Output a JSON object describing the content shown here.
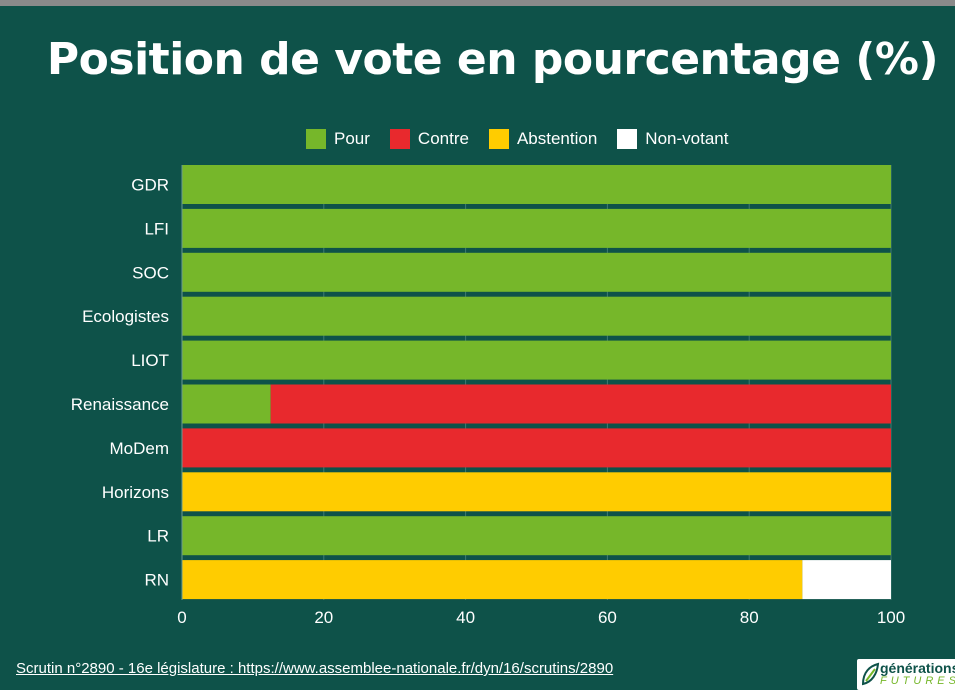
{
  "chart_data": {
    "type": "bar",
    "orientation": "horizontal",
    "stacked": true,
    "title": "Position de vote en pourcentage (%)",
    "categories": [
      "GDR",
      "LFI",
      "SOC",
      "Ecologistes",
      "LIOT",
      "Renaissance",
      "MoDem",
      "Horizons",
      "LR",
      "RN"
    ],
    "series": [
      {
        "name": "Pour",
        "color": "#76b72a",
        "values": [
          100,
          100,
          100,
          100,
          100,
          12.5,
          0,
          0,
          100,
          0
        ]
      },
      {
        "name": "Contre",
        "color": "#e8292d",
        "values": [
          0,
          0,
          0,
          0,
          0,
          87.5,
          100,
          0,
          0,
          0
        ]
      },
      {
        "name": "Abstention",
        "color": "#ffcc00",
        "values": [
          0,
          0,
          0,
          0,
          0,
          0,
          0,
          100,
          0,
          87.5
        ]
      },
      {
        "name": "Non-votant",
        "color": "#ffffff",
        "values": [
          0,
          0,
          0,
          0,
          0,
          0,
          0,
          0,
          0,
          12.5
        ]
      }
    ],
    "xlim": [
      0,
      100
    ],
    "xticks": [
      "0",
      "20",
      "40",
      "60",
      "80",
      "100"
    ],
    "grid": true,
    "legend_position": "top"
  },
  "footer": {
    "source": "Scrutin n°2890 - 16e législature : https://www.assemblee-nationale.fr/dyn/16/scrutins/2890"
  },
  "logo": {
    "line1": "générations",
    "line2": "FUTURES"
  }
}
